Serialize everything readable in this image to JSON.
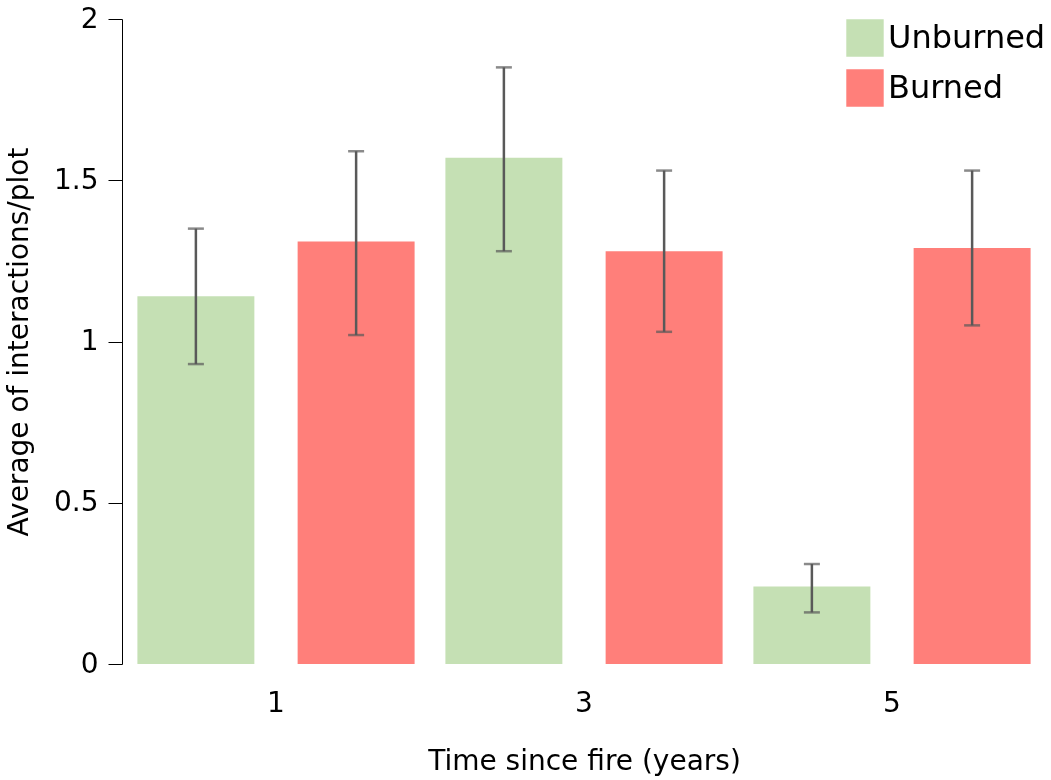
{
  "chart_data": {
    "type": "bar",
    "xlabel": "Time since fire (years)",
    "ylabel": "Average of interactions/plot",
    "categories": [
      "1",
      "3",
      "5"
    ],
    "series": [
      {
        "name": "Unburned",
        "color": "#c5e0b4",
        "values": [
          1.14,
          1.57,
          0.24
        ],
        "errors": [
          [
            0.93,
            1.35
          ],
          [
            1.28,
            1.85
          ],
          [
            0.16,
            0.31
          ]
        ]
      },
      {
        "name": "Burned",
        "color": "#ff7f7a",
        "values": [
          1.31,
          1.28,
          1.29
        ],
        "errors": [
          [
            1.02,
            1.59
          ],
          [
            1.03,
            1.53
          ],
          [
            1.05,
            1.53
          ]
        ]
      }
    ],
    "ylim": [
      0,
      2
    ],
    "yticks": [
      0,
      0.5,
      1,
      1.5,
      2
    ],
    "grid": false,
    "legend": "top right"
  }
}
